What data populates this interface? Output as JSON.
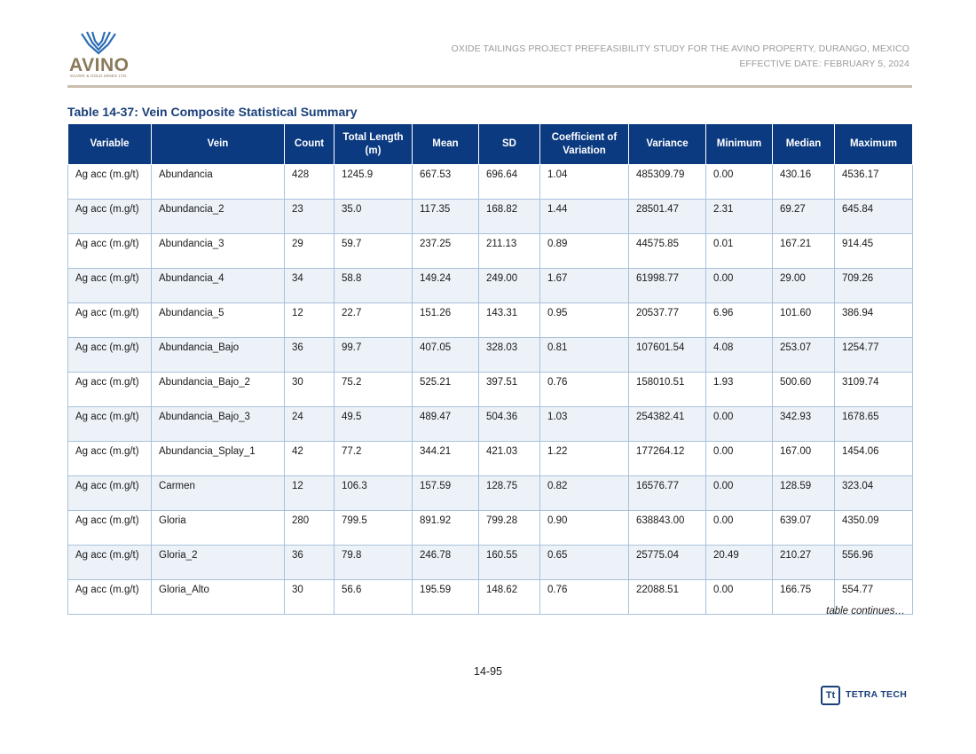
{
  "logo": {
    "name": "AVINO",
    "subtitle": "SILVER & GOLD MINES LTD.",
    "icon": "avino-mark-icon"
  },
  "header": {
    "line1": "OXIDE TAILINGS PROJECT PREFEASIBILITY STUDY FOR THE AVINO PROPERTY, DURANGO, MEXICO",
    "line2": "EFFECTIVE DATE: FEBRUARY 5, 2024"
  },
  "table": {
    "title": "Table 14-37: Vein Composite Statistical Summary",
    "columns": [
      "Variable",
      "Vein",
      "Count",
      "Total Length (m)",
      "Mean",
      "SD",
      "Coefficient of Variation",
      "Variance",
      "Minimum",
      "Median",
      "Maximum"
    ],
    "rows": [
      [
        "Ag acc (m.g/t)",
        "Abundancia",
        "428",
        "1245.9",
        "667.53",
        "696.64",
        "1.04",
        "485309.79",
        "0.00",
        "430.16",
        "4536.17"
      ],
      [
        "Ag acc (m.g/t)",
        "Abundancia_2",
        "23",
        "35.0",
        "117.35",
        "168.82",
        "1.44",
        "28501.47",
        "2.31",
        "69.27",
        "645.84"
      ],
      [
        "Ag acc (m.g/t)",
        "Abundancia_3",
        "29",
        "59.7",
        "237.25",
        "211.13",
        "0.89",
        "44575.85",
        "0.01",
        "167.21",
        "914.45"
      ],
      [
        "Ag acc (m.g/t)",
        "Abundancia_4",
        "34",
        "58.8",
        "149.24",
        "249.00",
        "1.67",
        "61998.77",
        "0.00",
        "29.00",
        "709.26"
      ],
      [
        "Ag acc (m.g/t)",
        "Abundancia_5",
        "12",
        "22.7",
        "151.26",
        "143.31",
        "0.95",
        "20537.77",
        "6.96",
        "101.60",
        "386.94"
      ],
      [
        "Ag acc (m.g/t)",
        "Abundancia_Bajo",
        "36",
        "99.7",
        "407.05",
        "328.03",
        "0.81",
        "107601.54",
        "4.08",
        "253.07",
        "1254.77"
      ],
      [
        "Ag acc (m.g/t)",
        "Abundancia_Bajo_2",
        "30",
        "75.2",
        "525.21",
        "397.51",
        "0.76",
        "158010.51",
        "1.93",
        "500.60",
        "3109.74"
      ],
      [
        "Ag acc (m.g/t)",
        "Abundancia_Bajo_3",
        "24",
        "49.5",
        "489.47",
        "504.36",
        "1.03",
        "254382.41",
        "0.00",
        "342.93",
        "1678.65"
      ],
      [
        "Ag acc (m.g/t)",
        "Abundancia_Splay_1",
        "42",
        "77.2",
        "344.21",
        "421.03",
        "1.22",
        "177264.12",
        "0.00",
        "167.00",
        "1454.06"
      ],
      [
        "Ag acc (m.g/t)",
        "Carmen",
        "12",
        "106.3",
        "157.59",
        "128.75",
        "0.82",
        "16576.77",
        "0.00",
        "128.59",
        "323.04"
      ],
      [
        "Ag acc (m.g/t)",
        "Gloria",
        "280",
        "799.5",
        "891.92",
        "799.28",
        "0.90",
        "638843.00",
        "0.00",
        "639.07",
        "4350.09"
      ],
      [
        "Ag acc (m.g/t)",
        "Gloria_2",
        "36",
        "79.8",
        "246.78",
        "160.55",
        "0.65",
        "25775.04",
        "20.49",
        "210.27",
        "556.96"
      ],
      [
        "Ag acc (m.g/t)",
        "Gloria_Alto",
        "30",
        "56.6",
        "195.59",
        "148.62",
        "0.76",
        "22088.51",
        "0.00",
        "166.75",
        "554.77"
      ]
    ],
    "continues_note": "table continues…"
  },
  "footer": {
    "page_number": "14-95",
    "brand": "TETRA TECH",
    "brand_icon_text": "Tt"
  }
}
